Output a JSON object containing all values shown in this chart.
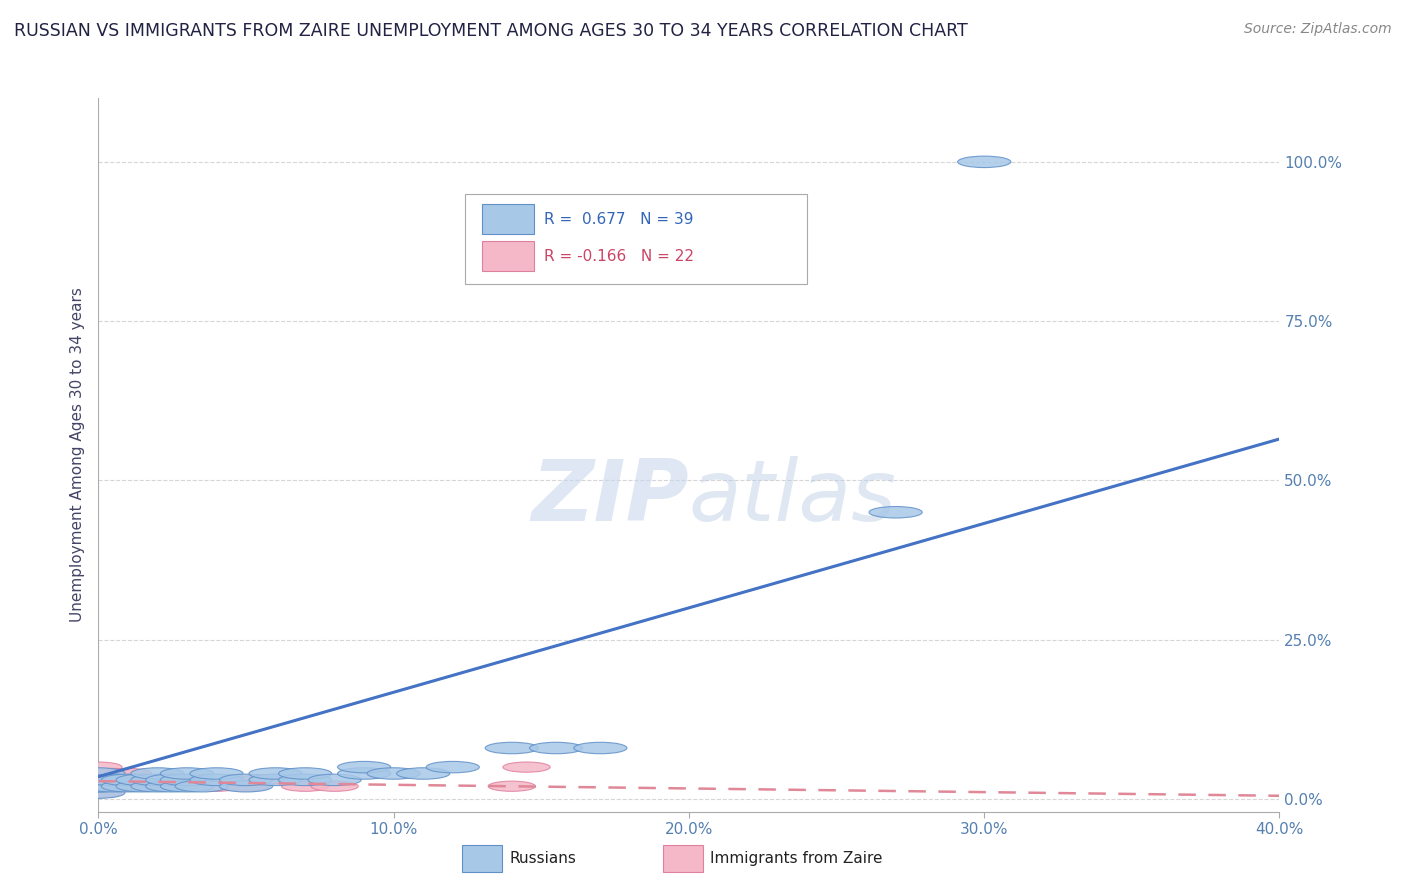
{
  "title": "RUSSIAN VS IMMIGRANTS FROM ZAIRE UNEMPLOYMENT AMONG AGES 30 TO 34 YEARS CORRELATION CHART",
  "source_text": "Source: ZipAtlas.com",
  "ylabel": "Unemployment Among Ages 30 to 34 years",
  "xlim": [
    0.0,
    0.4
  ],
  "ylim": [
    -0.02,
    1.1
  ],
  "xticks": [
    0.0,
    0.1,
    0.2,
    0.3,
    0.4
  ],
  "xticklabels": [
    "0.0%",
    "10.0%",
    "20.0%",
    "30.0%",
    "40.0%"
  ],
  "yticks": [
    0.0,
    0.25,
    0.5,
    0.75,
    1.0
  ],
  "yticklabels": [
    "0.0%",
    "25.0%",
    "50.0%",
    "75.0%",
    "100.0%"
  ],
  "blue_R": 0.677,
  "blue_N": 39,
  "pink_R": -0.166,
  "pink_N": 22,
  "blue_color": "#a8c8e8",
  "pink_color": "#f4b8c8",
  "blue_edge_color": "#6090c8",
  "pink_edge_color": "#e080a0",
  "blue_line_color": "#4472c4",
  "pink_line_color": "#e08898",
  "watermark_zip": "ZIP",
  "watermark_atlas": "atlas",
  "blue_x": [
    0.0,
    0.0,
    0.0,
    0.0,
    0.0,
    0.005,
    0.005,
    0.01,
    0.01,
    0.015,
    0.015,
    0.02,
    0.02,
    0.02,
    0.025,
    0.025,
    0.03,
    0.03,
    0.03,
    0.035,
    0.04,
    0.04,
    0.05,
    0.05,
    0.06,
    0.06,
    0.07,
    0.07,
    0.08,
    0.09,
    0.09,
    0.1,
    0.11,
    0.12,
    0.14,
    0.155,
    0.17,
    0.27,
    0.3
  ],
  "blue_y": [
    0.01,
    0.02,
    0.02,
    0.03,
    0.04,
    0.02,
    0.03,
    0.02,
    0.03,
    0.02,
    0.03,
    0.02,
    0.03,
    0.04,
    0.02,
    0.03,
    0.02,
    0.03,
    0.04,
    0.02,
    0.03,
    0.04,
    0.02,
    0.03,
    0.03,
    0.04,
    0.03,
    0.04,
    0.03,
    0.04,
    0.05,
    0.04,
    0.04,
    0.05,
    0.08,
    0.08,
    0.08,
    0.45,
    1.0
  ],
  "pink_x": [
    0.0,
    0.0,
    0.0,
    0.0,
    0.0,
    0.005,
    0.005,
    0.01,
    0.01,
    0.015,
    0.015,
    0.02,
    0.02,
    0.025,
    0.03,
    0.04,
    0.05,
    0.055,
    0.07,
    0.08,
    0.14,
    0.145
  ],
  "pink_y": [
    0.01,
    0.02,
    0.03,
    0.04,
    0.05,
    0.02,
    0.04,
    0.02,
    0.04,
    0.02,
    0.03,
    0.02,
    0.03,
    0.02,
    0.03,
    0.02,
    0.02,
    0.03,
    0.02,
    0.02,
    0.02,
    0.05
  ],
  "blue_line_x0": 0.0,
  "blue_line_y0": 0.035,
  "blue_line_x1": 0.4,
  "blue_line_y1": 0.565,
  "pink_line_x0": 0.0,
  "pink_line_y0": 0.028,
  "pink_line_x1": 0.4,
  "pink_line_y1": 0.005
}
